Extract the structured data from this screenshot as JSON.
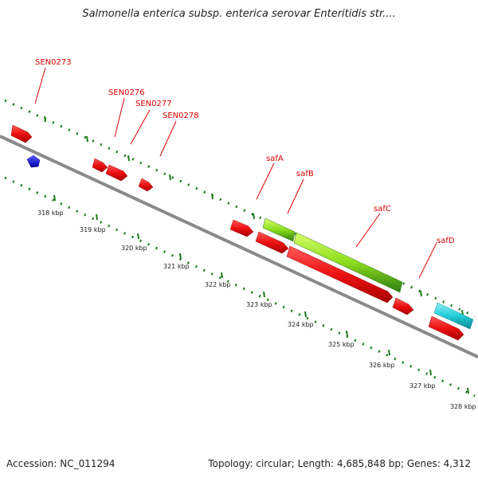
{
  "title": "Salmonella enterica subsp. enterica serovar Enteritidis str....",
  "footer": {
    "accession": "Accession: NC_011294",
    "summary": "Topology: circular; Length: 4,685,848 bp; Genes: 4,312"
  },
  "gene_labels": [
    "SEN0273",
    "SEN0276",
    "SEN0277",
    "SEN0278",
    "safA",
    "safB",
    "safC",
    "safD"
  ],
  "tick_labels": [
    "318 kbp",
    "319 kbp",
    "320 kbp",
    "321 kbp",
    "322 kbp",
    "323 kbp",
    "324 kbp",
    "325 kbp",
    "326 kbp",
    "327 kbp",
    "328 kbp"
  ],
  "colors": {
    "gene_label": "#e00000",
    "cds": "#ee1111",
    "blue_feature": "#1111dd",
    "green_feature": "#8cdc1e",
    "cyan_feature": "#22ccd8",
    "backbone": "#888888",
    "tick_dots": "#1a7a1a"
  }
}
